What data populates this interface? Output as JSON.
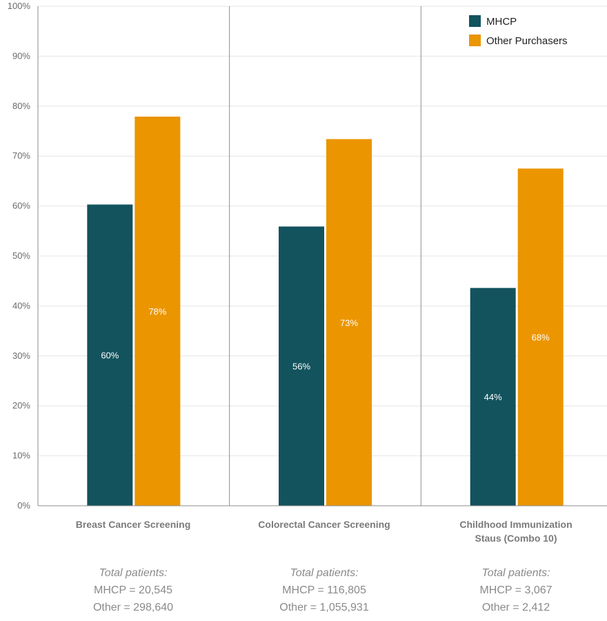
{
  "chart_data": {
    "type": "bar",
    "categories": [
      "Breast Cancer Screening",
      "Colorectal Cancer Screening",
      "Childhood Immunization Staus (Combo 10)"
    ],
    "series": [
      {
        "name": "MHCP",
        "values": [
          60.3,
          55.9,
          43.6
        ],
        "labels": [
          "60%",
          "56%",
          "44%"
        ],
        "color": "#12535d"
      },
      {
        "name": "Other Purchasers",
        "values": [
          77.9,
          73.4,
          67.5
        ],
        "labels": [
          "78%",
          "73%",
          "68%"
        ],
        "color": "#eb9500"
      }
    ],
    "ylim": [
      0,
      100
    ],
    "yticks": [
      0,
      10,
      20,
      30,
      40,
      50,
      60,
      70,
      80,
      90,
      100
    ],
    "ytick_labels": [
      "0%",
      "10%",
      "20%",
      "30%",
      "40%",
      "50%",
      "60%",
      "70%",
      "80%",
      "90%",
      "100%"
    ],
    "grid": true,
    "legend": "top-right",
    "title": "",
    "xlabel": "",
    "ylabel": ""
  },
  "categories_display": [
    {
      "lines": [
        "Breast Cancer Screening"
      ]
    },
    {
      "lines": [
        "Colorectal Cancer Screening"
      ]
    },
    {
      "lines": [
        "Childhood Immunization",
        "Staus (Combo 10)"
      ]
    }
  ],
  "totals": [
    {
      "title": "Total patients:",
      "mhcp": "MHCP = 20,545",
      "other": "Other = 298,640"
    },
    {
      "title": "Total patients:",
      "mhcp": "MHCP = 116,805",
      "other": "Other = 1,055,931"
    },
    {
      "title": "Total patients:",
      "mhcp": "MHCP = 3,067",
      "other": "Other = 2,412"
    }
  ]
}
